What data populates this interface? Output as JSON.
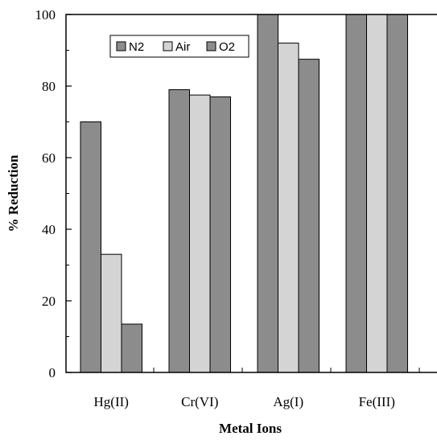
{
  "chart_data": {
    "type": "bar",
    "title": "",
    "xlabel": "Metal Ions",
    "ylabel": "% Reduction",
    "categories": [
      "Hg(II)",
      "Cr(VI)",
      "Ag(I)",
      "Fe(III)"
    ],
    "ylim": [
      0,
      100
    ],
    "yticks": [
      0,
      20,
      40,
      60,
      80,
      100
    ],
    "grid": false,
    "legend_position": "top-left",
    "series": [
      {
        "name": "N2",
        "values": [
          70,
          79,
          100,
          100
        ],
        "color": "#8c8c8c"
      },
      {
        "name": "Air",
        "values": [
          33,
          77.5,
          92,
          100
        ],
        "color": "#d4d4d4"
      },
      {
        "name": "O2",
        "values": [
          13.5,
          77,
          87.5,
          100
        ],
        "color": "#8c8c8c"
      }
    ]
  }
}
